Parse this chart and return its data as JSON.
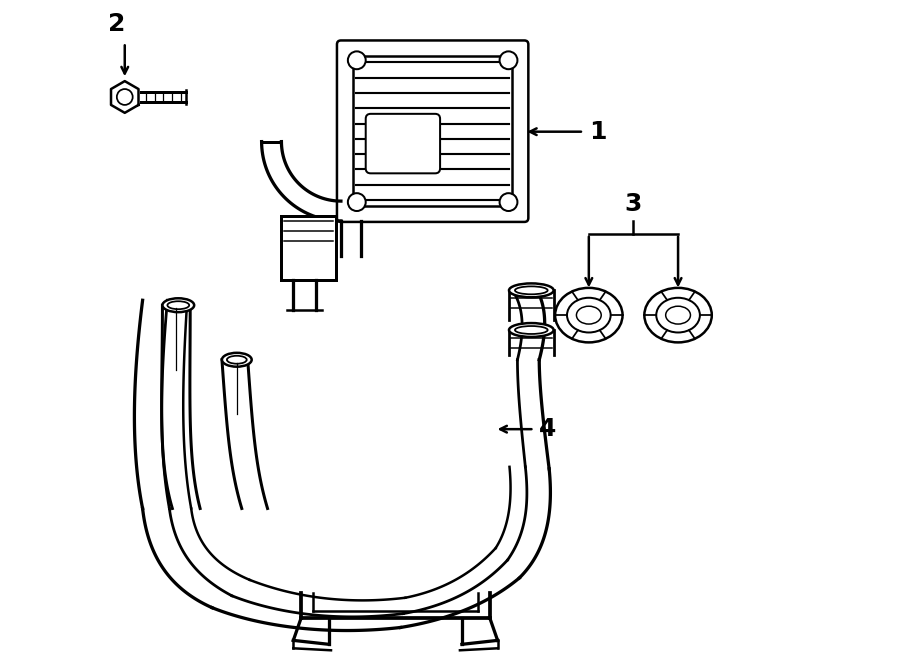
{
  "background_color": "#ffffff",
  "line_color": "#000000",
  "line_width": 1.8,
  "figure_width": 9.0,
  "figure_height": 6.61,
  "dpi": 100
}
